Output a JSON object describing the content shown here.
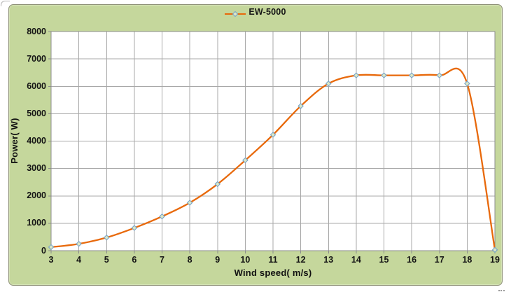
{
  "chart_data": {
    "type": "line",
    "title": "",
    "series": [
      {
        "name": "EW-5000",
        "x": [
          3,
          4,
          5,
          6,
          7,
          8,
          9,
          10,
          11,
          12,
          13,
          14,
          15,
          16,
          17,
          18,
          19
        ],
        "values": [
          130,
          250,
          480,
          830,
          1250,
          1750,
          2430,
          3300,
          4230,
          5280,
          6100,
          6400,
          6400,
          6400,
          6400,
          6100,
          30
        ]
      }
    ],
    "xlabel": "Wind speed( m/s)",
    "ylabel": "Power( W)",
    "xlim": [
      3,
      19
    ],
    "ylim": [
      0,
      8000
    ],
    "x_ticks": [
      3,
      4,
      5,
      6,
      7,
      8,
      9,
      10,
      11,
      12,
      13,
      14,
      15,
      16,
      17,
      18,
      19
    ],
    "y_ticks": [
      0,
      1000,
      2000,
      3000,
      4000,
      5000,
      6000,
      7000,
      8000
    ],
    "grid": true,
    "line_smoothing": true,
    "legend_position": "top-center",
    "colors": {
      "chart_background": "#c5d79c",
      "plot_background": "#ffffff",
      "frame_border": "#8d9076",
      "gridline": "#a8a8a8",
      "axis_line": "#8c8c8c",
      "series_line": "#e8690b",
      "marker_fill": "#dde8c5",
      "marker_stroke": "#77a3c9",
      "text": "#141414"
    }
  }
}
